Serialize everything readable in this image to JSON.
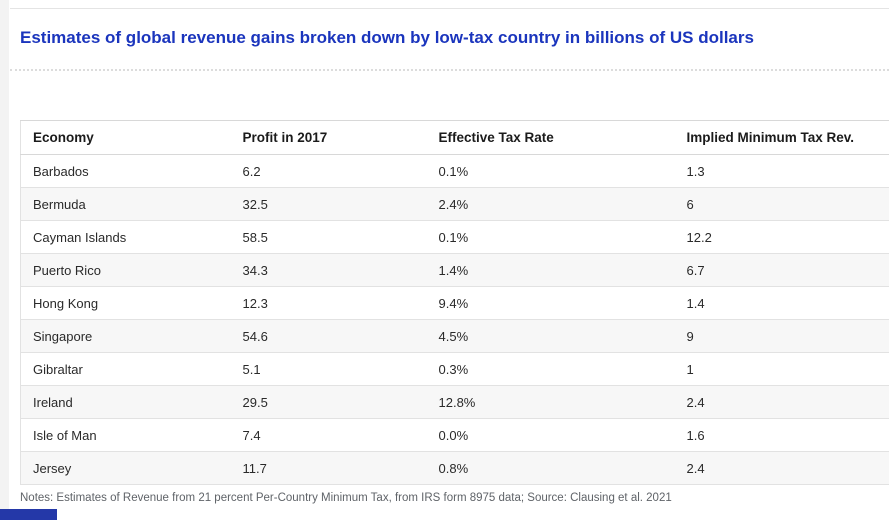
{
  "header": {
    "title": "Estimates of global revenue gains broken down by low-tax country in billions of US dollars"
  },
  "table": {
    "columns": [
      "Economy",
      "Profit in 2017",
      "Effective Tax Rate",
      "Implied Minimum Tax Rev."
    ],
    "rows": [
      [
        "Barbados",
        "6.2",
        "0.1%",
        "1.3"
      ],
      [
        "Bermuda",
        "32.5",
        "2.4%",
        "6"
      ],
      [
        "Cayman Islands",
        "58.5",
        "0.1%",
        "12.2"
      ],
      [
        "Puerto Rico",
        "34.3",
        "1.4%",
        "6.7"
      ],
      [
        "Hong Kong",
        "12.3",
        "9.4%",
        "1.4"
      ],
      [
        "Singapore",
        "54.6",
        "4.5%",
        "9"
      ],
      [
        "Gibraltar",
        "5.1",
        "0.3%",
        "1"
      ],
      [
        "Ireland",
        "29.5",
        "12.8%",
        "2.4"
      ],
      [
        "Isle of Man",
        "7.4",
        "0.0%",
        "1.6"
      ],
      [
        "Jersey",
        "11.7",
        "0.8%",
        "2.4"
      ]
    ]
  },
  "footer": {
    "notes": "Notes: Estimates of Revenue from 21 percent Per-Country Minimum Tax, from IRS form 8975 data; Source: Clausing et al. 2021"
  },
  "colors": {
    "title_blue": "#1b35bd",
    "accent_bar_blue": "#2438a8",
    "row_alt_background": "#f7f7f7",
    "border_gray": "#e2e2e2",
    "notes_gray": "#5f6368"
  },
  "chart_data": {
    "type": "table",
    "title": "Estimates of global revenue gains broken down by low-tax country in billions of US dollars",
    "columns": [
      "Economy",
      "Profit in 2017",
      "Effective Tax Rate",
      "Implied Minimum Tax Rev."
    ],
    "categories": [
      "Barbados",
      "Bermuda",
      "Cayman Islands",
      "Puerto Rico",
      "Hong Kong",
      "Singapore",
      "Gibraltar",
      "Ireland",
      "Isle of Man",
      "Jersey"
    ],
    "series": [
      {
        "name": "Profit in 2017",
        "values": [
          6.2,
          32.5,
          58.5,
          34.3,
          12.3,
          54.6,
          5.1,
          29.5,
          7.4,
          11.7
        ]
      },
      {
        "name": "Effective Tax Rate (%)",
        "values": [
          0.1,
          2.4,
          0.1,
          1.4,
          9.4,
          4.5,
          0.3,
          12.8,
          0.0,
          0.8
        ]
      },
      {
        "name": "Implied Minimum Tax Rev.",
        "values": [
          1.3,
          6,
          12.2,
          6.7,
          1.4,
          9,
          1,
          2.4,
          1.6,
          2.4
        ]
      }
    ],
    "notes": "Notes: Estimates of Revenue from 21 percent Per-Country Minimum Tax, from IRS form 8975 data; Source: Clausing et al. 2021"
  }
}
